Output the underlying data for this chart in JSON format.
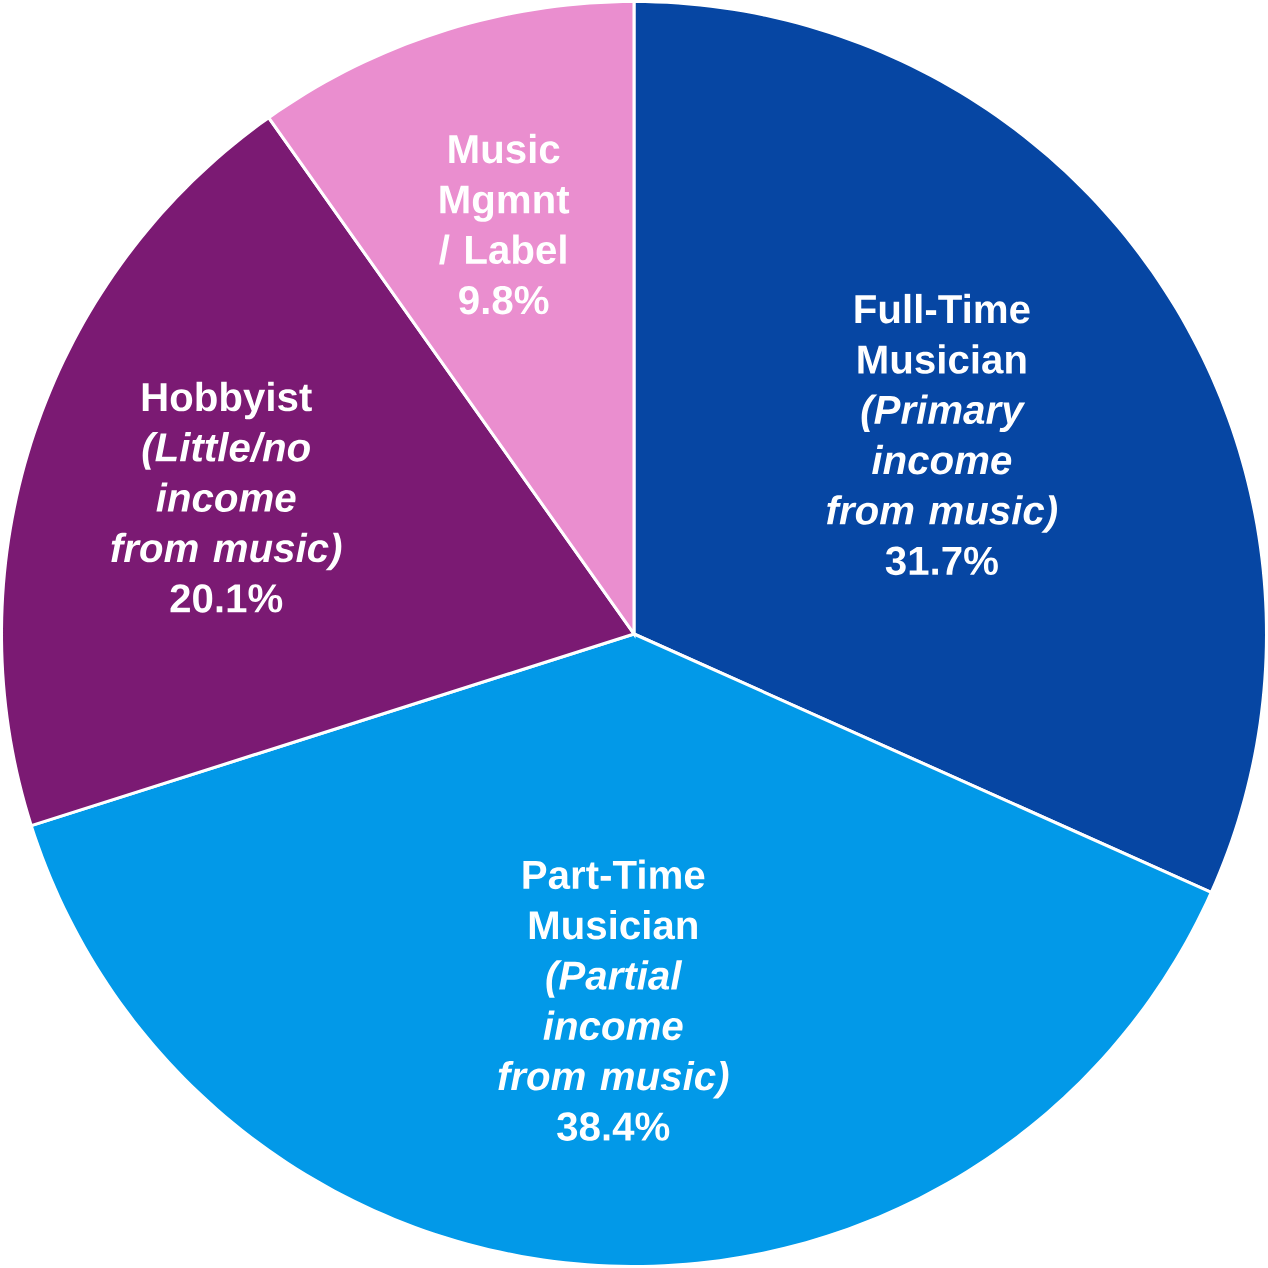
{
  "chart_data": {
    "type": "pie",
    "categories": [
      "Full-Time Musician *(Primary income from music)*",
      "Part-Time Musician *(Partial income from music)*",
      "Hobbyist *(Little/no income from music)*",
      "Music Mgmnt / Label"
    ],
    "values": [
      31.7,
      38.4,
      20.1,
      9.8
    ],
    "value_labels": [
      "31.7%",
      "38.4%",
      "20.1%",
      "9.8%"
    ],
    "colors": [
      "#0646a3",
      "#0299e8",
      "#7b1a73",
      "#ea8ecf"
    ]
  }
}
